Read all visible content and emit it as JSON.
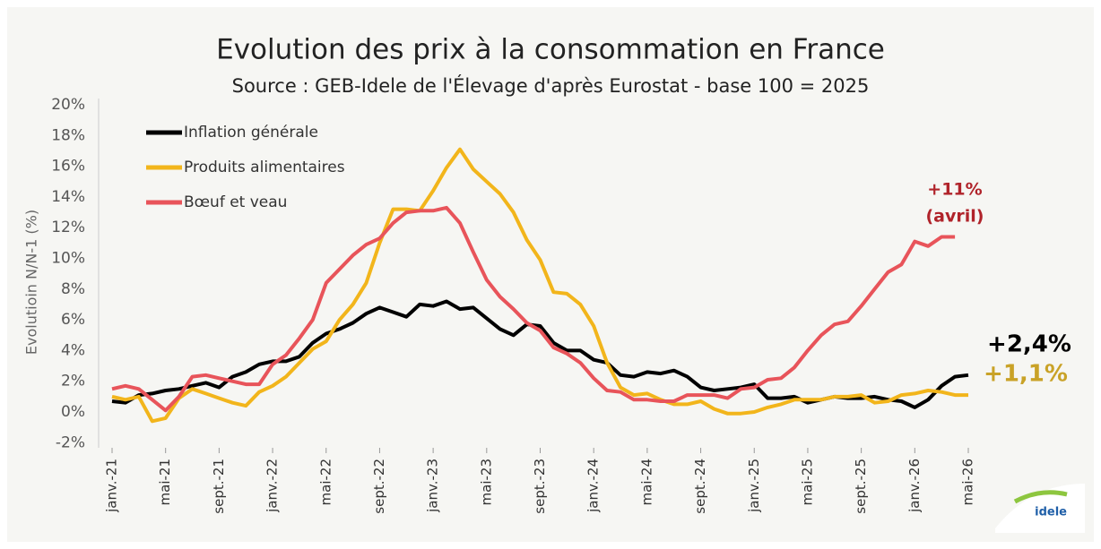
{
  "chart_data": {
    "type": "line",
    "title": "Evolution des prix à la consommation en France",
    "subtitle": "Source : GEB-Idele de l'Élevage d'après Eurostat - base 100 = 2025",
    "y_axis_label": "Evolutioin N/N-1 (%)",
    "categories": [
      "janv.-21",
      null,
      null,
      null,
      "mai-21",
      null,
      null,
      null,
      "sept.-21",
      null,
      null,
      null,
      "janv.-22",
      null,
      null,
      null,
      "mai-22",
      null,
      null,
      null,
      "sept.-22",
      null,
      null,
      null,
      "janv.-23",
      null,
      null,
      null,
      "mai-23",
      null,
      null,
      null,
      "sept.-23",
      null,
      null,
      null,
      "janv.-24",
      null,
      null,
      null,
      "mai-24",
      null,
      null,
      null,
      "sept.-24",
      null,
      null,
      null,
      "janv.-25",
      null,
      null,
      null,
      "mai-25",
      null,
      null,
      null,
      "sept.-25",
      null,
      null,
      null,
      "janv.-26",
      null,
      null,
      null,
      "mai-26"
    ],
    "series": [
      {
        "name": "Inflation générale",
        "color": "#000000",
        "values": [
          0.7,
          0.6,
          1.1,
          1.2,
          1.4,
          1.5,
          1.7,
          1.9,
          1.6,
          2.3,
          2.6,
          3.1,
          3.3,
          3.3,
          3.6,
          4.5,
          5.1,
          5.4,
          5.8,
          6.4,
          6.8,
          6.5,
          6.2,
          7.0,
          6.9,
          7.2,
          6.7,
          6.8,
          6.1,
          5.4,
          5.0,
          5.7,
          5.6,
          4.5,
          4.0,
          4.0,
          3.4,
          3.2,
          2.4,
          2.3,
          2.6,
          2.5,
          2.7,
          2.3,
          1.6,
          1.4,
          1.5,
          1.6,
          1.8,
          0.9,
          0.9,
          1.0,
          0.6,
          0.8,
          1.0,
          0.9,
          0.9,
          1.0,
          0.8,
          0.7,
          0.3,
          0.8,
          1.7,
          2.3,
          2.4
        ]
      },
      {
        "name": "Produits alimentaires",
        "color": "#f2b51b",
        "values": [
          1.0,
          0.8,
          1.0,
          -0.6,
          -0.4,
          0.9,
          1.5,
          1.2,
          0.9,
          0.6,
          0.4,
          1.3,
          1.7,
          2.3,
          3.2,
          4.1,
          4.6,
          6.0,
          7.0,
          8.4,
          11.0,
          13.2,
          13.2,
          13.1,
          14.4,
          15.9,
          17.1,
          15.8,
          15.0,
          14.2,
          13.0,
          11.2,
          9.9,
          7.8,
          7.7,
          7.0,
          5.6,
          3.2,
          1.6,
          1.1,
          1.2,
          0.8,
          0.5,
          0.5,
          0.7,
          0.2,
          -0.1,
          -0.1,
          0.0,
          0.3,
          0.5,
          0.8,
          0.8,
          0.8,
          1.0,
          1.0,
          1.1,
          0.6,
          0.7,
          1.1,
          1.2,
          1.4,
          1.3,
          1.1,
          1.1
        ]
      },
      {
        "name": "Bœuf et veau",
        "color": "#e8545a",
        "values": [
          1.5,
          1.7,
          1.5,
          0.8,
          0.1,
          1.0,
          2.3,
          2.4,
          2.2,
          2.0,
          1.8,
          1.8,
          3.1,
          3.7,
          4.8,
          6.0,
          8.4,
          9.3,
          10.2,
          10.9,
          11.3,
          12.3,
          13.0,
          13.1,
          13.1,
          13.3,
          12.3,
          10.4,
          8.6,
          7.5,
          6.7,
          5.8,
          5.3,
          4.2,
          3.8,
          3.2,
          2.2,
          1.4,
          1.3,
          0.8,
          0.8,
          0.7,
          0.7,
          1.1,
          1.1,
          1.1,
          0.9,
          1.5,
          1.6,
          2.1,
          2.2,
          2.9,
          4.0,
          5.0,
          5.7,
          5.9,
          6.9,
          8.0,
          9.1,
          9.6,
          11.1,
          10.8,
          11.4,
          11.4,
          null
        ]
      }
    ],
    "ylim": [
      -2,
      20
    ],
    "yticks": [
      {
        "value": -2,
        "label": "-2%"
      },
      {
        "value": 0,
        "label": "0%"
      },
      {
        "value": 2,
        "label": "2%"
      },
      {
        "value": 4,
        "label": "4%"
      },
      {
        "value": 6,
        "label": "6%"
      },
      {
        "value": 8,
        "label": "8%"
      },
      {
        "value": 10,
        "label": "10%"
      },
      {
        "value": 12,
        "label": "12%"
      },
      {
        "value": 14,
        "label": "14%"
      },
      {
        "value": 16,
        "label": "16%"
      },
      {
        "value": 18,
        "label": "18%"
      },
      {
        "value": 20,
        "label": "20%"
      }
    ],
    "legend": "top-left",
    "annotations": [
      {
        "text": "+11%",
        "color": "#b0232a"
      },
      {
        "text": "(avril)",
        "color": "#b0232a"
      },
      {
        "text": "+2,4%",
        "color": "#000000"
      },
      {
        "text": "+1,1%",
        "color": "#c9a227"
      }
    ],
    "logo": "idele"
  }
}
